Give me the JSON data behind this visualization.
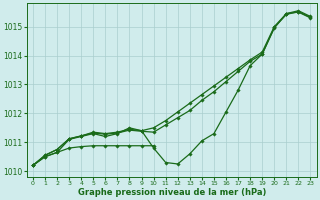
{
  "x": [
    0,
    1,
    2,
    3,
    4,
    5,
    6,
    7,
    8,
    9,
    10,
    11,
    12,
    13,
    14,
    15,
    16,
    17,
    18,
    19,
    20,
    21,
    22,
    23
  ],
  "line_wavy": [
    1010.2,
    1010.5,
    1010.65,
    1011.1,
    1011.2,
    1011.3,
    1011.2,
    1011.3,
    1011.5,
    1011.4,
    1010.8,
    1010.3,
    1010.25,
    1010.6,
    1011.05,
    1011.3,
    1012.05,
    1012.8,
    1013.65,
    1014.05,
    1014.95,
    1015.45,
    1015.5,
    1015.3
  ],
  "line_straight1": [
    1010.2,
    1010.55,
    1010.75,
    1011.12,
    1011.22,
    1011.32,
    1011.28,
    1011.32,
    1011.42,
    1011.38,
    1011.35,
    1011.6,
    1011.85,
    1012.1,
    1012.45,
    1012.75,
    1013.1,
    1013.45,
    1013.8,
    1014.05,
    1014.97,
    1015.42,
    1015.52,
    1015.32
  ],
  "line_straight2": [
    1010.2,
    1010.55,
    1010.75,
    1011.12,
    1011.22,
    1011.35,
    1011.3,
    1011.35,
    1011.45,
    1011.4,
    1011.5,
    1011.75,
    1012.05,
    1012.35,
    1012.65,
    1012.95,
    1013.25,
    1013.55,
    1013.85,
    1014.12,
    1015.0,
    1015.45,
    1015.55,
    1015.35
  ],
  "line_flat": [
    1010.2,
    1010.5,
    1010.65,
    1010.8,
    1010.85,
    1010.88,
    1010.88,
    1010.88,
    1010.88,
    1010.88,
    1010.88,
    null,
    null,
    null,
    null,
    null,
    null,
    null,
    null,
    null,
    null,
    null,
    null,
    null
  ],
  "ylim": [
    1009.8,
    1015.8
  ],
  "xlim": [
    -0.5,
    23.5
  ],
  "yticks": [
    1010,
    1011,
    1012,
    1013,
    1014,
    1015
  ],
  "xticks": [
    0,
    1,
    2,
    3,
    4,
    5,
    6,
    7,
    8,
    9,
    10,
    11,
    12,
    13,
    14,
    15,
    16,
    17,
    18,
    19,
    20,
    21,
    22,
    23
  ],
  "xlabel": "Graphe pression niveau de la mer (hPa)",
  "line_color": "#1a6b1a",
  "bg_color": "#d0ecec",
  "grid_color": "#aacece",
  "marker": "D",
  "marker_size": 1.8,
  "line_width": 0.9
}
